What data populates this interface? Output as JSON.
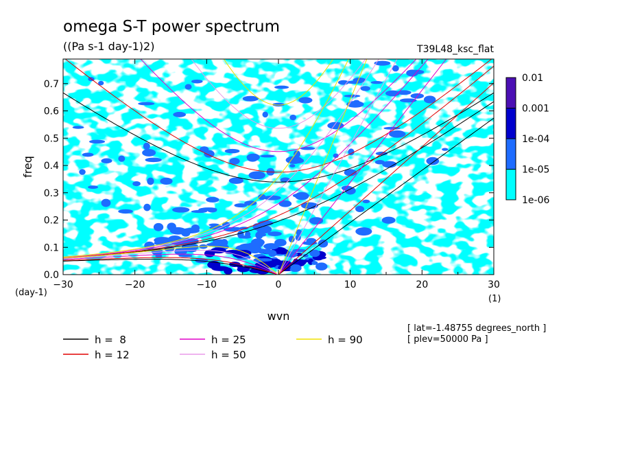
{
  "chart_data": {
    "type": "heatmap",
    "title": "omega S-T power spectrum",
    "subtitle": "((Pa s-1 day-1)2)",
    "run_label": "T39L48_ksc_flat",
    "xlabel": "wvn",
    "x_unit": "(1)",
    "ylabel": "freq",
    "y_unit": "(day-1)",
    "xlim": [
      -30,
      30
    ],
    "ylim": [
      0,
      0.79
    ],
    "xticks": [
      "-30",
      "-20",
      "-10",
      "0",
      "10",
      "20",
      "30"
    ],
    "yticks": [
      "0.0",
      "0.1",
      "0.2",
      "0.3",
      "0.4",
      "0.5",
      "0.6",
      "0.7"
    ],
    "colorbar": {
      "labels": [
        "1e-06",
        "1e-05",
        "1e-04",
        "0.001",
        "0.01"
      ],
      "colors": [
        "#00ffff",
        "#1e6cff",
        "#0000cd",
        "#4b0fb4"
      ]
    },
    "annotations": [
      "[ lat=-1.48755 degrees_north ]",
      "[ plev=50000 Pa ]"
    ],
    "dispersion_curves": [
      {
        "name": "h =  8",
        "depth_m": 8,
        "color": "#000000"
      },
      {
        "name": "h = 12",
        "depth_m": 12,
        "color": "#e00000"
      },
      {
        "name": "h = 25",
        "depth_m": 25,
        "color": "#e000c8"
      },
      {
        "name": "h = 50",
        "depth_m": 50,
        "color": "#e89ae8"
      },
      {
        "name": "h = 90",
        "depth_m": 90,
        "color": "#f0e000"
      }
    ]
  }
}
